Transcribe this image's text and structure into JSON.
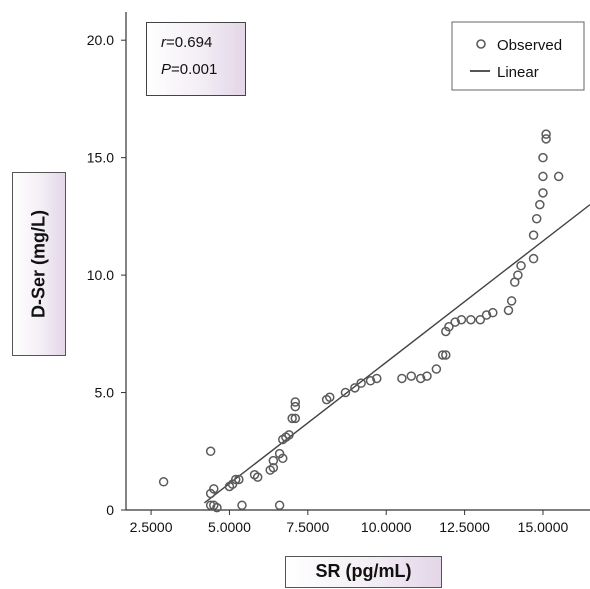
{
  "chart_data": {
    "type": "scatter",
    "xlabel": "SR (pg/mL)",
    "ylabel": "D-Ser (mg/L)",
    "xlim": [
      1.7,
      16.5
    ],
    "ylim": [
      0,
      21.2
    ],
    "x_ticks": [
      "2.5000",
      "5.0000",
      "7.5000",
      "10.0000",
      "12.5000",
      "15.0000"
    ],
    "x_tick_values": [
      2.5,
      5.0,
      7.5,
      10.0,
      12.5,
      15.0
    ],
    "y_ticks": [
      "0",
      "5.0",
      "10.0",
      "15.0",
      "20.0"
    ],
    "y_tick_values": [
      0,
      5,
      10,
      15,
      20
    ],
    "legend": {
      "position": "top-right",
      "observed_label": "Observed",
      "linear_label": "Linear"
    },
    "annotation": {
      "r_symbol": "r",
      "r_value": "=0.694",
      "p_symbol": "P",
      "p_value": "=0.001"
    },
    "series": [
      {
        "name": "Observed",
        "kind": "points",
        "points": [
          [
            2.9,
            1.2
          ],
          [
            4.4,
            2.5
          ],
          [
            4.4,
            0.7
          ],
          [
            4.5,
            0.9
          ],
          [
            4.4,
            0.2
          ],
          [
            4.5,
            0.2
          ],
          [
            4.6,
            0.1
          ],
          [
            5.0,
            1.0
          ],
          [
            5.1,
            1.1
          ],
          [
            5.2,
            1.3
          ],
          [
            5.3,
            1.3
          ],
          [
            5.4,
            0.2
          ],
          [
            5.8,
            1.5
          ],
          [
            5.9,
            1.4
          ],
          [
            6.3,
            1.7
          ],
          [
            6.4,
            2.1
          ],
          [
            6.4,
            1.8
          ],
          [
            6.6,
            2.4
          ],
          [
            6.7,
            2.2
          ],
          [
            6.6,
            0.2
          ],
          [
            6.7,
            3.0
          ],
          [
            6.8,
            3.1
          ],
          [
            6.9,
            3.2
          ],
          [
            7.0,
            3.9
          ],
          [
            7.1,
            3.9
          ],
          [
            7.1,
            4.4
          ],
          [
            7.1,
            4.6
          ],
          [
            8.1,
            4.7
          ],
          [
            8.2,
            4.8
          ],
          [
            8.7,
            5.0
          ],
          [
            9.0,
            5.2
          ],
          [
            9.2,
            5.4
          ],
          [
            9.5,
            5.5
          ],
          [
            9.7,
            5.6
          ],
          [
            10.5,
            5.6
          ],
          [
            10.8,
            5.7
          ],
          [
            11.1,
            5.6
          ],
          [
            11.3,
            5.7
          ],
          [
            11.6,
            6.0
          ],
          [
            11.8,
            6.6
          ],
          [
            11.9,
            6.6
          ],
          [
            11.9,
            7.6
          ],
          [
            12.0,
            7.8
          ],
          [
            12.2,
            8.0
          ],
          [
            12.4,
            8.1
          ],
          [
            12.7,
            8.1
          ],
          [
            13.0,
            8.1
          ],
          [
            13.2,
            8.3
          ],
          [
            13.4,
            8.4
          ],
          [
            13.9,
            8.5
          ],
          [
            14.0,
            8.9
          ],
          [
            14.1,
            9.7
          ],
          [
            14.2,
            10.0
          ],
          [
            14.3,
            10.4
          ],
          [
            14.7,
            10.7
          ],
          [
            14.7,
            11.7
          ],
          [
            14.8,
            12.4
          ],
          [
            14.9,
            13.0
          ],
          [
            15.0,
            13.5
          ],
          [
            15.0,
            14.2
          ],
          [
            15.0,
            15.0
          ],
          [
            15.1,
            16.0
          ],
          [
            15.1,
            15.8
          ],
          [
            15.5,
            14.2
          ]
        ]
      },
      {
        "name": "Linear",
        "kind": "line",
        "points": [
          [
            4.2,
            0.3
          ],
          [
            16.5,
            13.0
          ]
        ]
      }
    ]
  }
}
